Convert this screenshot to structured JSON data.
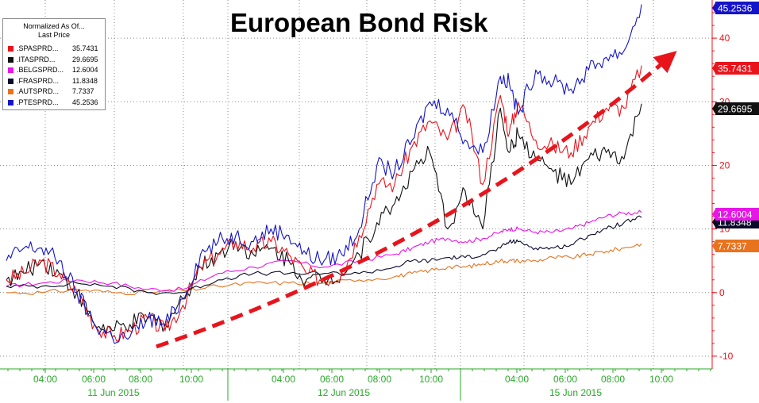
{
  "chart_data": {
    "type": "line",
    "title": "European Bond Risk",
    "legend": {
      "header_line1": "Normalized As Of...",
      "header_line2": "Last Price",
      "placement": "top-left"
    },
    "ylim": [
      -12,
      46
    ],
    "yticks": [
      "40",
      "30",
      "20",
      "10",
      "0",
      "-10"
    ],
    "ytick_values": [
      40,
      30,
      20,
      10,
      0,
      -10
    ],
    "xticks_time": [
      "04:00",
      "06:00",
      "08:00",
      "10:00",
      "04:00",
      "06:00",
      "08:00",
      "10:00",
      "04:00",
      "06:00",
      "08:00",
      "10:00"
    ],
    "xticks_day": [
      "11 Jun 2015",
      "12 Jun 2015",
      "15 Jun 2015"
    ],
    "grid": true,
    "x_range": [
      0,
      73
    ],
    "series": [
      {
        "name": ".SPASPRD",
        "last_label": "35.7431",
        "color": "#e8141c",
        "x": [
          0,
          2,
          4,
          6,
          8,
          10,
          12,
          14,
          16,
          18,
          20,
          22,
          24,
          26,
          28,
          30,
          32,
          34,
          36,
          38,
          40,
          42,
          44,
          46,
          48,
          50,
          52,
          54,
          56,
          57,
          58,
          60,
          62,
          64,
          66,
          68,
          70,
          72
        ],
        "y": [
          2,
          3,
          5,
          3,
          0,
          -5,
          -7,
          -6,
          -4,
          -6,
          -2,
          4,
          6,
          8,
          7,
          8,
          6,
          3,
          2,
          3,
          9,
          17,
          17,
          23,
          27,
          24,
          29,
          17,
          31,
          25,
          30,
          24,
          23,
          22,
          26,
          29,
          29,
          35.7
        ]
      },
      {
        "name": ".ITASPRD",
        "last_label": "29.6695",
        "color": "#111111",
        "x": [
          0,
          2,
          4,
          6,
          8,
          10,
          12,
          14,
          16,
          18,
          20,
          22,
          24,
          26,
          28,
          30,
          32,
          34,
          36,
          38,
          40,
          42,
          44,
          46,
          48,
          50,
          52,
          54,
          56,
          57,
          58,
          60,
          62,
          64,
          66,
          68,
          70,
          72
        ],
        "y": [
          2,
          3,
          5,
          3,
          0,
          -5,
          -6,
          -5,
          -4,
          -5,
          -1,
          4,
          6,
          8,
          6,
          7,
          5,
          2,
          2,
          3,
          6,
          11,
          14,
          19,
          22,
          10,
          16,
          10,
          29,
          22,
          25,
          21,
          19,
          17,
          21,
          22,
          21,
          29.7
        ]
      },
      {
        "name": ".BELGSPRD",
        "last_label": "12.6004",
        "color": "#e815e8",
        "x": [
          0,
          4,
          8,
          12,
          16,
          20,
          24,
          28,
          32,
          36,
          40,
          44,
          46,
          48,
          50,
          52,
          54,
          56,
          57,
          58,
          60,
          62,
          64,
          66,
          68,
          70,
          72
        ],
        "y": [
          1,
          1.5,
          2,
          1.5,
          0.5,
          0.5,
          3,
          4,
          5,
          4,
          5,
          6,
          7,
          8,
          8.5,
          8,
          8.5,
          9.5,
          10,
          10,
          9.5,
          9.5,
          10,
          11,
          12,
          12.5,
          12.6
        ]
      },
      {
        "name": ".FRASPRD",
        "last_label": "11.8348",
        "color": "#0a0a2a",
        "x": [
          0,
          4,
          8,
          12,
          16,
          20,
          24,
          28,
          32,
          36,
          40,
          44,
          46,
          48,
          50,
          52,
          54,
          56,
          57,
          58,
          60,
          62,
          64,
          66,
          68,
          70,
          72
        ],
        "y": [
          1,
          1,
          1.5,
          1,
          0,
          0,
          2,
          3,
          3,
          3,
          3,
          4,
          5,
          5,
          5.5,
          5.5,
          6,
          7,
          8,
          8,
          7,
          7,
          7.5,
          9,
          10,
          11,
          11.8
        ]
      },
      {
        "name": ".AUTSPRD",
        "last_label": "7.7337",
        "color": "#e8731e",
        "x": [
          0,
          4,
          8,
          12,
          16,
          20,
          24,
          28,
          32,
          36,
          40,
          44,
          46,
          48,
          50,
          52,
          54,
          56,
          57,
          58,
          60,
          62,
          64,
          66,
          68,
          70,
          72
        ],
        "y": [
          0,
          0,
          0.5,
          0,
          0,
          0.3,
          1,
          1.5,
          1.5,
          1.5,
          2,
          2.5,
          3,
          3.5,
          4,
          4,
          4.5,
          5,
          5,
          5,
          5,
          5.5,
          5.5,
          6,
          6.5,
          7,
          7.7
        ]
      },
      {
        "name": ".PTESPRD",
        "last_label": "45.2536",
        "color": "#1414c8",
        "x": [
          0,
          2,
          4,
          6,
          8,
          10,
          12,
          14,
          16,
          18,
          20,
          22,
          24,
          26,
          28,
          30,
          32,
          34,
          36,
          38,
          40,
          42,
          44,
          46,
          48,
          50,
          52,
          54,
          56,
          57,
          58,
          60,
          62,
          64,
          66,
          68,
          70,
          72
        ],
        "y": [
          5,
          7,
          7,
          5,
          0,
          -5,
          -7,
          -7,
          -4,
          -5,
          -1,
          6,
          8,
          9,
          8,
          10,
          9,
          6,
          5,
          6,
          10,
          20,
          19,
          24,
          30,
          29,
          24,
          22,
          34,
          33,
          28,
          35,
          33,
          32,
          35,
          37,
          38,
          45.3
        ]
      }
    ],
    "annotation": {
      "type": "arrow",
      "color": "#e8141c",
      "from": [
        17,
        -8.5
      ],
      "to": [
        76,
        38
      ]
    }
  }
}
